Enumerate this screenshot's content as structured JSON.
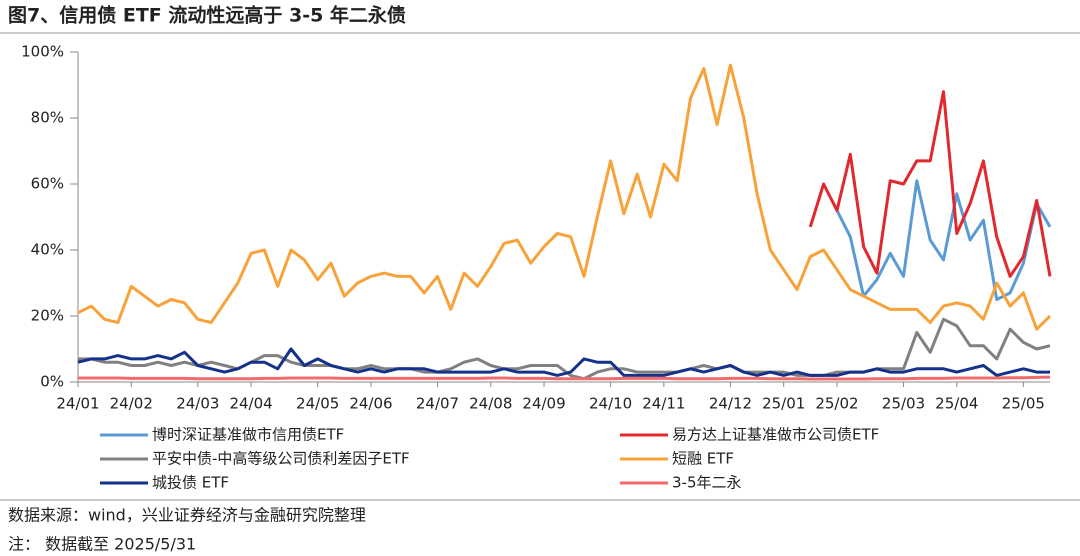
{
  "chart_data": {
    "type": "line",
    "title": "图7、信用债 ETF 流动性远高于 3-5 年二永债",
    "source": "数据来源：wind，兴业证券经济与金融研究院整理",
    "note": "注：  数据截至 2025/5/31",
    "categories": [
      "24/01",
      null,
      null,
      null,
      "24/02",
      null,
      null,
      null,
      null,
      "24/03",
      null,
      null,
      null,
      "24/04",
      null,
      null,
      null,
      null,
      "24/05",
      null,
      null,
      null,
      "24/06",
      null,
      null,
      null,
      null,
      "24/07",
      null,
      null,
      null,
      "24/08",
      null,
      null,
      null,
      "24/09",
      null,
      null,
      null,
      null,
      "24/10",
      null,
      null,
      null,
      "24/11",
      null,
      null,
      null,
      null,
      "24/12",
      null,
      null,
      null,
      "25/01",
      null,
      null,
      null,
      "25/02",
      null,
      null,
      null,
      null,
      "25/03",
      null,
      null,
      null,
      "25/04",
      null,
      null,
      null,
      null,
      "25/05",
      null,
      null
    ],
    "ylim": [
      0,
      100
    ],
    "yticks": [
      {
        "value": 0,
        "label": "0%"
      },
      {
        "value": 20,
        "label": "20%"
      },
      {
        "value": 40,
        "label": "40%"
      },
      {
        "value": 60,
        "label": "60%"
      },
      {
        "value": 80,
        "label": "80%"
      },
      {
        "value": 100,
        "label": "100%"
      }
    ],
    "series": [
      {
        "name": "博时深证基准做市信用债ETF",
        "color": "#5b9bd5",
        "values": [
          null,
          null,
          null,
          null,
          null,
          null,
          null,
          null,
          null,
          null,
          null,
          null,
          null,
          null,
          null,
          null,
          null,
          null,
          null,
          null,
          null,
          null,
          null,
          null,
          null,
          null,
          null,
          null,
          null,
          null,
          null,
          null,
          null,
          null,
          null,
          null,
          null,
          null,
          null,
          null,
          null,
          null,
          null,
          null,
          null,
          null,
          null,
          null,
          null,
          null,
          null,
          null,
          null,
          null,
          null,
          null,
          null,
          52,
          44,
          26,
          31,
          39,
          32,
          61,
          43,
          37,
          57,
          43,
          49,
          25,
          27,
          36,
          54,
          47
        ]
      },
      {
        "name": "易方达上证基准做市公司债ETF",
        "color": "#e0282e",
        "values": [
          null,
          null,
          null,
          null,
          null,
          null,
          null,
          null,
          null,
          null,
          null,
          null,
          null,
          null,
          null,
          null,
          null,
          null,
          null,
          null,
          null,
          null,
          null,
          null,
          null,
          null,
          null,
          null,
          null,
          null,
          null,
          null,
          null,
          null,
          null,
          null,
          null,
          null,
          null,
          null,
          null,
          null,
          null,
          null,
          null,
          null,
          null,
          null,
          null,
          null,
          null,
          null,
          null,
          null,
          null,
          47,
          60,
          52,
          69,
          41,
          33,
          61,
          60,
          67,
          67,
          88,
          45,
          54,
          67,
          44,
          32,
          38,
          55,
          32
        ]
      },
      {
        "name": "平安中债-中高等级公司债利差因子ETF",
        "color": "#808080",
        "values": [
          7,
          7,
          6,
          6,
          5,
          5,
          6,
          5,
          6,
          5,
          6,
          5,
          4,
          6,
          8,
          8,
          6,
          5,
          5,
          5,
          4,
          4,
          5,
          4,
          4,
          4,
          3,
          3,
          4,
          6,
          7,
          5,
          4,
          4,
          5,
          5,
          5,
          2,
          1,
          3,
          4,
          4,
          3,
          3,
          3,
          3,
          4,
          5,
          4,
          5,
          3,
          3,
          3,
          3,
          2,
          2,
          2,
          3,
          3,
          3,
          4,
          4,
          4,
          15,
          9,
          19,
          17,
          11,
          11,
          7,
          16,
          12,
          10,
          11
        ]
      },
      {
        "name": "短融 ETF",
        "color": "#f8a23a",
        "values": [
          21,
          23,
          19,
          18,
          29,
          26,
          23,
          25,
          24,
          19,
          18,
          24,
          30,
          39,
          40,
          29,
          40,
          37,
          31,
          36,
          26,
          30,
          32,
          33,
          32,
          32,
          27,
          32,
          22,
          33,
          29,
          35,
          42,
          43,
          36,
          41,
          45,
          44,
          32,
          50,
          67,
          51,
          63,
          50,
          66,
          61,
          86,
          95,
          78,
          96,
          80,
          57,
          40,
          34,
          28,
          38,
          40,
          34,
          28,
          26,
          24,
          22,
          22,
          22,
          18,
          23,
          24,
          23,
          19,
          30,
          23,
          27,
          16,
          20
        ]
      },
      {
        "name": "城投债 ETF",
        "color": "#14318c",
        "values": [
          6,
          7,
          7,
          8,
          7,
          7,
          8,
          7,
          9,
          5,
          4,
          3,
          4,
          6,
          6,
          4,
          10,
          5,
          7,
          5,
          4,
          3,
          4,
          3,
          4,
          4,
          4,
          3,
          3,
          3,
          3,
          3,
          4,
          3,
          3,
          3,
          2,
          3,
          7,
          6,
          6,
          2,
          2,
          2,
          2,
          3,
          4,
          3,
          4,
          5,
          3,
          2,
          3,
          2,
          3,
          2,
          2,
          2,
          3,
          3,
          4,
          3,
          3,
          4,
          4,
          4,
          3,
          4,
          5,
          2,
          3,
          4,
          3,
          3
        ]
      },
      {
        "name": "3-5年二永",
        "color": "#f06c6c",
        "values": [
          1.2,
          1.2,
          1.2,
          1.2,
          1.1,
          1.1,
          1.1,
          1.1,
          1.1,
          1.0,
          1.0,
          1.0,
          1.0,
          1.0,
          1.1,
          1.1,
          1.2,
          1.2,
          1.2,
          1.2,
          1.1,
          1.1,
          1.1,
          1.1,
          1.1,
          1.1,
          1.1,
          1.1,
          1.1,
          1.1,
          1.1,
          1.2,
          1.2,
          1.1,
          1.1,
          1.1,
          1.0,
          1.0,
          1.0,
          1.0,
          1.0,
          1.1,
          1.1,
          1.1,
          1.1,
          1.0,
          1.0,
          1.0,
          1.0,
          1.1,
          1.1,
          1.1,
          1.0,
          1.0,
          1.0,
          0.9,
          0.9,
          0.9,
          0.9,
          0.9,
          1.0,
          1.0,
          1.0,
          1.1,
          1.1,
          1.1,
          1.2,
          1.2,
          1.2,
          1.2,
          1.3,
          1.3,
          1.4,
          1.5
        ]
      }
    ]
  }
}
